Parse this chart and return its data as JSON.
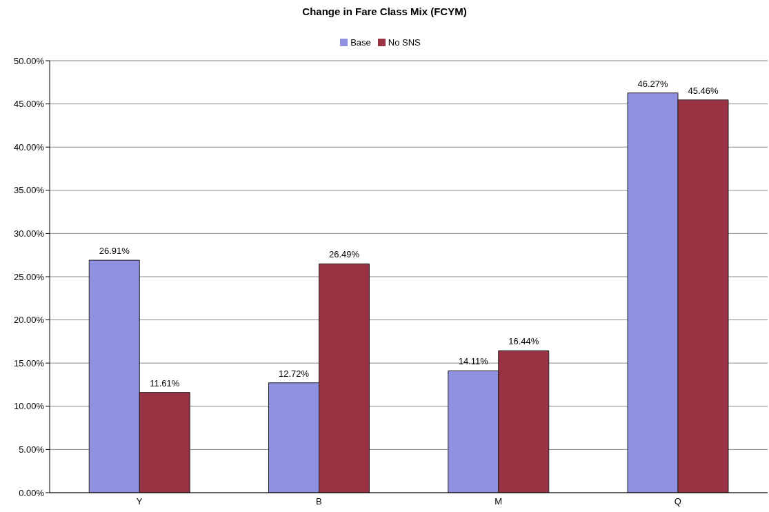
{
  "chart_data": {
    "type": "bar",
    "title": "Change in Fare Class Mix (FCYM)",
    "categories": [
      "Y",
      "B",
      "M",
      "Q"
    ],
    "series": [
      {
        "name": "Base",
        "color": "#9090e0",
        "values": [
          26.91,
          12.72,
          14.11,
          46.27
        ],
        "value_labels": [
          "26.91%",
          "12.72%",
          "14.11%",
          "46.27%"
        ]
      },
      {
        "name": "No SNS",
        "color": "#993344",
        "values": [
          11.61,
          26.49,
          16.44,
          45.46
        ],
        "value_labels": [
          "11.61%",
          "26.49%",
          "16.44%",
          "45.46%"
        ]
      }
    ],
    "ylim": [
      0,
      50
    ],
    "yticks": [
      {
        "value": 0,
        "label": "0.00%"
      },
      {
        "value": 5,
        "label": "5.00%"
      },
      {
        "value": 10,
        "label": "10.00%"
      },
      {
        "value": 15,
        "label": "15.00%"
      },
      {
        "value": 20,
        "label": "20.00%"
      },
      {
        "value": 25,
        "label": "25.00%"
      },
      {
        "value": 30,
        "label": "30.00%"
      },
      {
        "value": 35,
        "label": "35.00%"
      },
      {
        "value": 40,
        "label": "40.00%"
      },
      {
        "value": 45,
        "label": "45.00%"
      },
      {
        "value": 50,
        "label": "50.00%"
      }
    ],
    "grid": "y",
    "legend": "top"
  }
}
